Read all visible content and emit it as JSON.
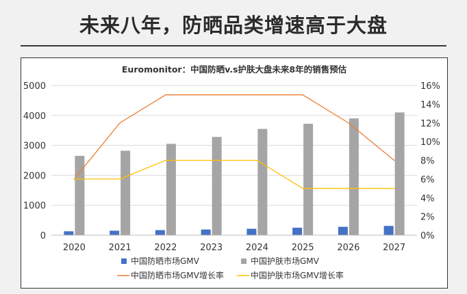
{
  "headline": "未来八年，防晒品类增速高于大盘",
  "colors": {
    "sunscreen_bar": "#4472c4",
    "skincare_bar": "#a5a5a5",
    "sunscreen_rate": "#ed7d31",
    "skincare_rate": "#ffc000",
    "grid": "#d9d9d9"
  },
  "chart_data": {
    "type": "bar",
    "title": "Euromonitor：中国防晒v.s护肤大盘未来8年的销售预估",
    "categories": [
      "2020",
      "2021",
      "2022",
      "2023",
      "2024",
      "2025",
      "2026",
      "2027"
    ],
    "y_left": {
      "min": 0,
      "max": 5000,
      "ticks": [
        "0",
        "1000",
        "2000",
        "3000",
        "4000",
        "5000"
      ]
    },
    "y_right": {
      "min": 0,
      "max": 0.16,
      "ticks": [
        "0%",
        "2%",
        "4%",
        "6%",
        "8%",
        "10%",
        "12%",
        "14%",
        "16%"
      ]
    },
    "series": [
      {
        "name": "中国防晒市场GMV",
        "kind": "bar",
        "axis": "left",
        "values": [
          130,
          150,
          170,
          190,
          215,
          250,
          280,
          310
        ]
      },
      {
        "name": "中国护肤市场GMV",
        "kind": "bar",
        "axis": "left",
        "values": [
          2650,
          2820,
          3050,
          3280,
          3550,
          3720,
          3900,
          4100
        ]
      },
      {
        "name": "中国防晒市场GMV增长率",
        "kind": "line",
        "axis": "right",
        "values": [
          0.06,
          0.12,
          0.15,
          0.15,
          0.15,
          0.15,
          0.12,
          0.08
        ]
      },
      {
        "name": "中国护肤市场GMV增长率",
        "kind": "line",
        "axis": "right",
        "values": [
          0.06,
          0.06,
          0.08,
          0.08,
          0.08,
          0.05,
          0.05,
          0.05
        ]
      }
    ]
  }
}
